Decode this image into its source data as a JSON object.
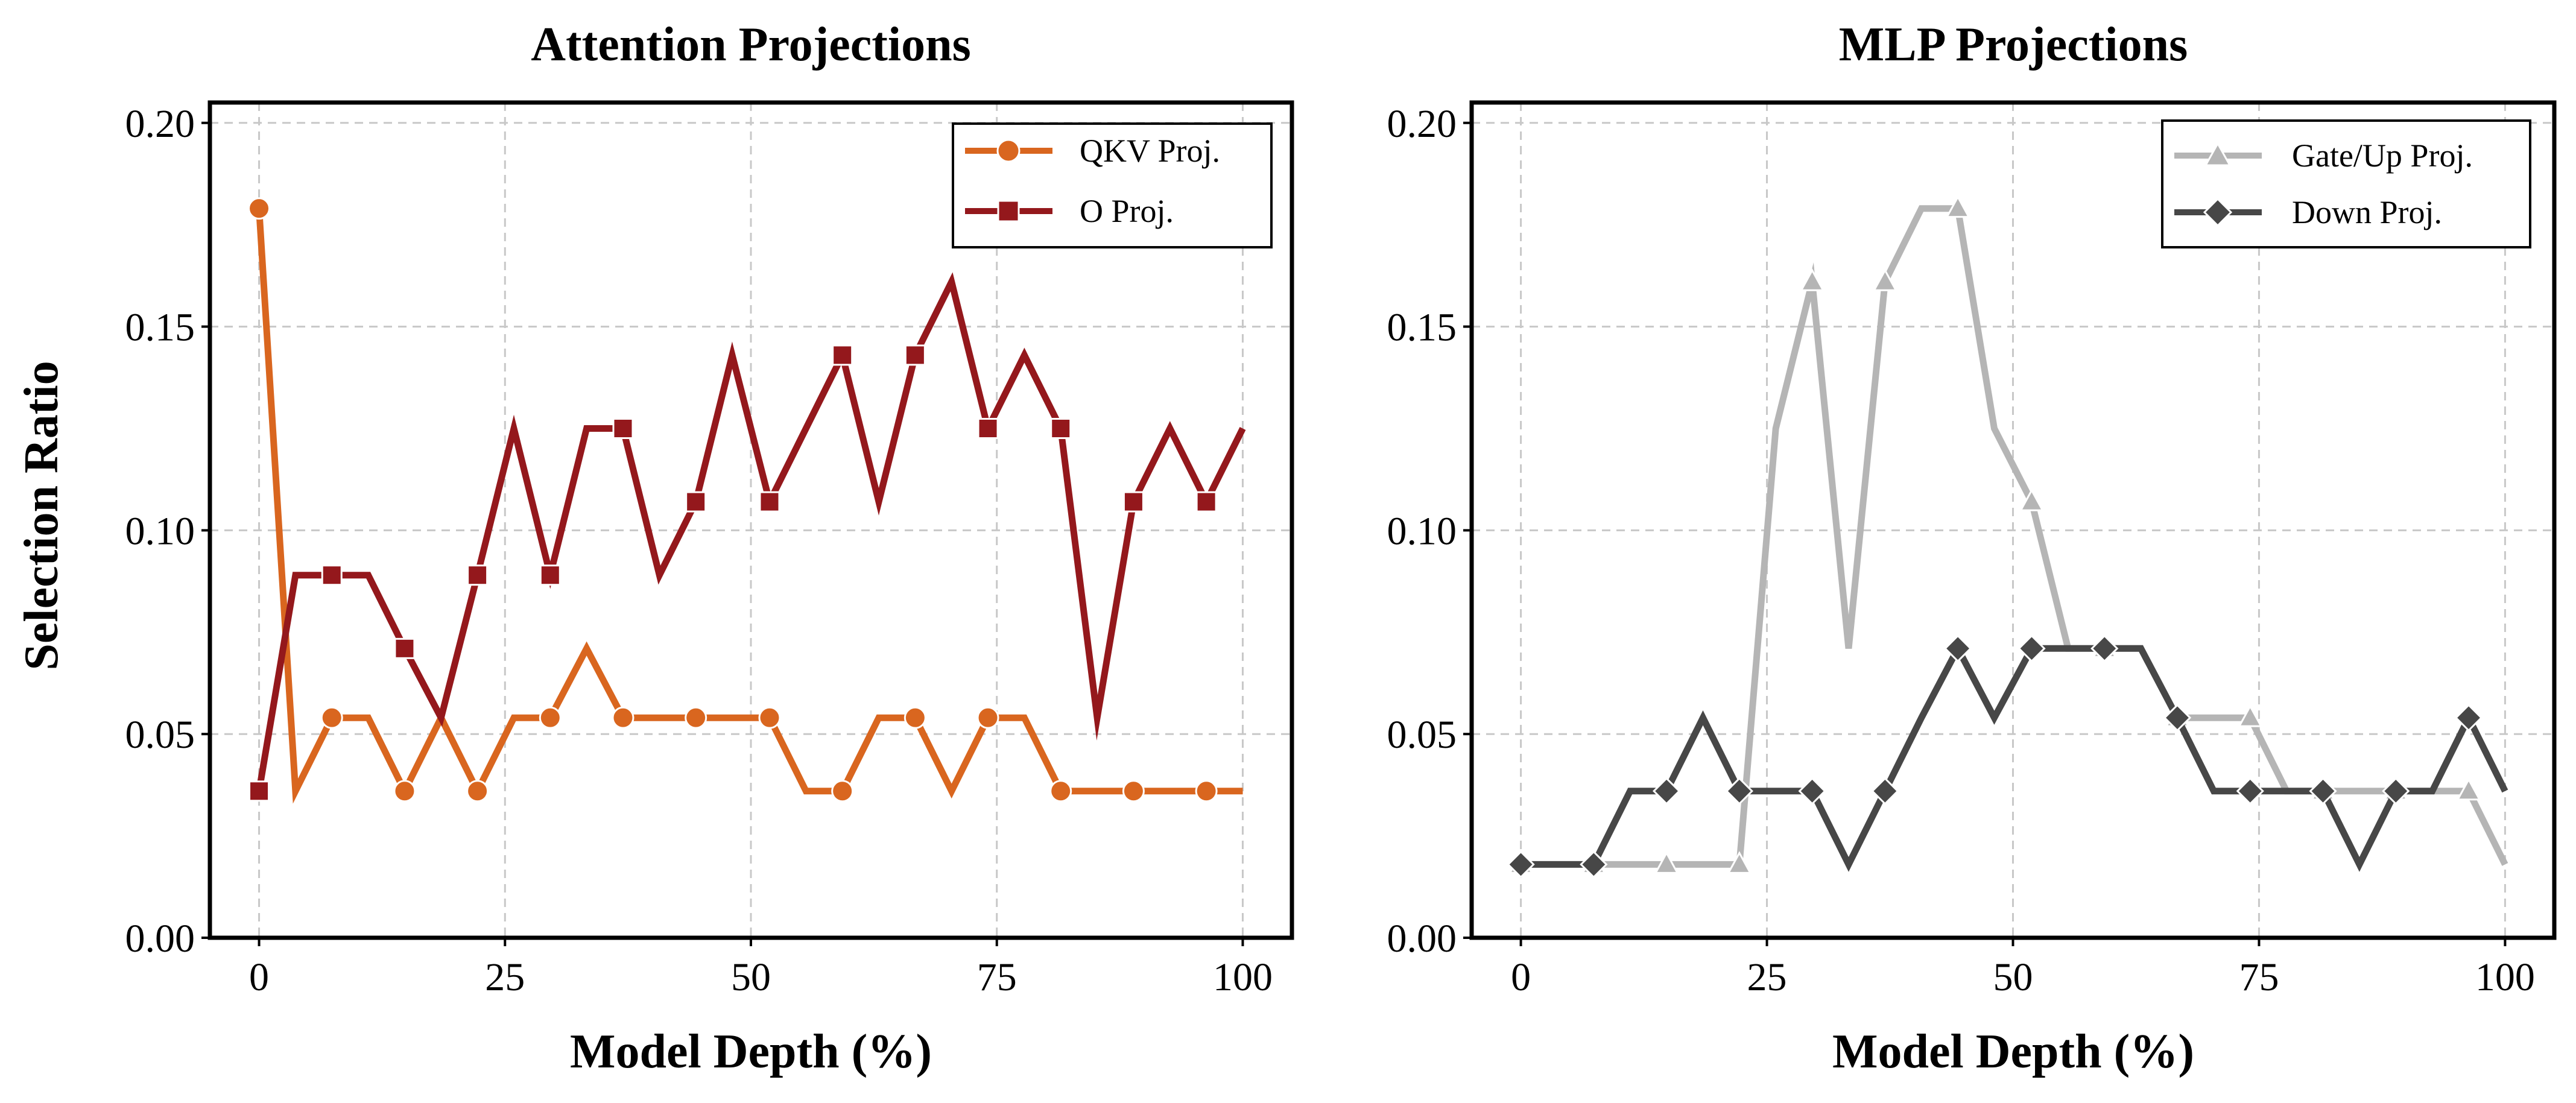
{
  "chart_data": [
    {
      "type": "line",
      "title": "Attention Projections",
      "xlabel": "Model Depth (%)",
      "ylabel": "Selection Ratio",
      "xlim": [
        -5,
        105
      ],
      "ylim": [
        0,
        0.205
      ],
      "xticks": [
        0,
        25,
        50,
        75,
        100
      ],
      "xtick_labels": [
        "0",
        "25",
        "50",
        "75",
        "100"
      ],
      "yticks": [
        0,
        0.05,
        0.1,
        0.15,
        0.2
      ],
      "ytick_labels": [
        "0.00",
        "0.05",
        "0.10",
        "0.15",
        "0.20"
      ],
      "grid": true,
      "legend_position": "top-right",
      "x": [
        0,
        3.7,
        7.4,
        11.1,
        14.8,
        18.5,
        22.2,
        25.9,
        29.6,
        33.3,
        37.0,
        40.7,
        44.4,
        48.1,
        51.9,
        55.6,
        59.3,
        63.0,
        66.7,
        70.4,
        74.1,
        77.8,
        81.5,
        85.2,
        88.9,
        92.6,
        96.3,
        100
      ],
      "series": [
        {
          "name": "QKV Proj.",
          "color": "#d9661f",
          "marker": "circle",
          "values": [
            0.179,
            0.036,
            0.054,
            0.054,
            0.036,
            0.054,
            0.036,
            0.054,
            0.054,
            0.071,
            0.054,
            0.054,
            0.054,
            0.054,
            0.054,
            0.036,
            0.036,
            0.054,
            0.054,
            0.036,
            0.054,
            0.054,
            0.036,
            0.036,
            0.036,
            0.036,
            0.036,
            0.036
          ]
        },
        {
          "name": "O Proj.",
          "color": "#94181c",
          "marker": "square",
          "values": [
            0.036,
            0.089,
            0.089,
            0.089,
            0.071,
            0.054,
            0.089,
            0.125,
            0.089,
            0.125,
            0.125,
            0.089,
            0.107,
            0.143,
            0.107,
            0.125,
            0.143,
            0.107,
            0.143,
            0.161,
            0.125,
            0.143,
            0.125,
            0.054,
            0.107,
            0.125,
            0.107,
            0.125
          ]
        }
      ]
    },
    {
      "type": "line",
      "title": "MLP Projections",
      "xlabel": "Model Depth (%)",
      "ylabel": "",
      "xlim": [
        -5,
        105
      ],
      "ylim": [
        0,
        0.205
      ],
      "xticks": [
        0,
        25,
        50,
        75,
        100
      ],
      "xtick_labels": [
        "0",
        "25",
        "50",
        "75",
        "100"
      ],
      "yticks": [
        0,
        0.05,
        0.1,
        0.15,
        0.2
      ],
      "ytick_labels": [
        "0.00",
        "0.05",
        "0.10",
        "0.15",
        "0.20"
      ],
      "grid": true,
      "legend_position": "top-right",
      "x": [
        0,
        3.7,
        7.4,
        11.1,
        14.8,
        18.5,
        22.2,
        25.9,
        29.6,
        33.3,
        37.0,
        40.7,
        44.4,
        48.1,
        51.9,
        55.6,
        59.3,
        63.0,
        66.7,
        70.4,
        74.1,
        77.8,
        81.5,
        85.2,
        88.9,
        92.6,
        96.3,
        100
      ],
      "series": [
        {
          "name": "Gate/Up Proj.",
          "color": "#b5b5b5",
          "marker": "triangle",
          "values": [
            0.018,
            0.018,
            0.018,
            0.018,
            0.018,
            0.018,
            0.018,
            0.125,
            0.161,
            0.071,
            0.161,
            0.179,
            0.179,
            0.125,
            0.107,
            0.071,
            0.071,
            0.071,
            0.054,
            0.054,
            0.054,
            0.036,
            0.036,
            0.036,
            0.036,
            0.036,
            0.036,
            0.018
          ]
        },
        {
          "name": "Down Proj.",
          "color": "#474747",
          "marker": "diamond",
          "values": [
            0.018,
            0.018,
            0.018,
            0.036,
            0.036,
            0.054,
            0.036,
            0.036,
            0.036,
            0.018,
            0.036,
            0.054,
            0.071,
            0.054,
            0.071,
            0.071,
            0.071,
            0.071,
            0.054,
            0.036,
            0.036,
            0.036,
            0.036,
            0.018,
            0.036,
            0.036,
            0.054,
            0.036
          ]
        }
      ]
    }
  ]
}
